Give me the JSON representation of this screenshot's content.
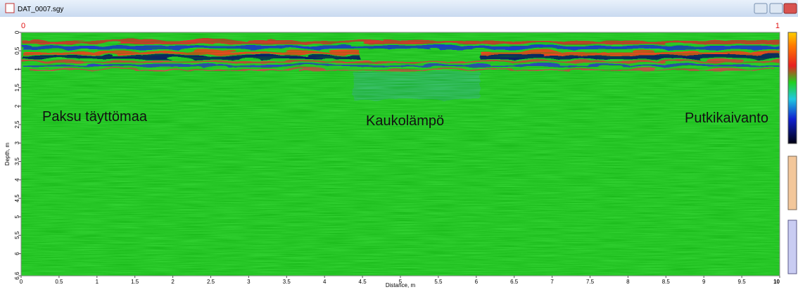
{
  "window": {
    "title": "DAT_0007.sgy"
  },
  "markers": {
    "left": "0",
    "right": "1"
  },
  "radargram": {
    "x_label": "Distance, m",
    "y_label": "Depth, m",
    "xlim": [
      0,
      10
    ],
    "ylim": [
      0,
      6.6
    ],
    "xticks": [
      0,
      0.5,
      1,
      1.5,
      2,
      2.5,
      3,
      3.5,
      4,
      4.5,
      5,
      5.5,
      6,
      6.5,
      7,
      7.5,
      8,
      8.5,
      9,
      9.5,
      10
    ],
    "yticks": [
      0,
      0.5,
      1,
      1.5,
      2,
      2.5,
      3,
      3.5,
      4,
      4.5,
      5,
      5.5,
      6,
      6.6
    ],
    "annotations": [
      "Paksu täyttömaa",
      "Kaukolämpö",
      "Putkikaivanto"
    ]
  }
}
